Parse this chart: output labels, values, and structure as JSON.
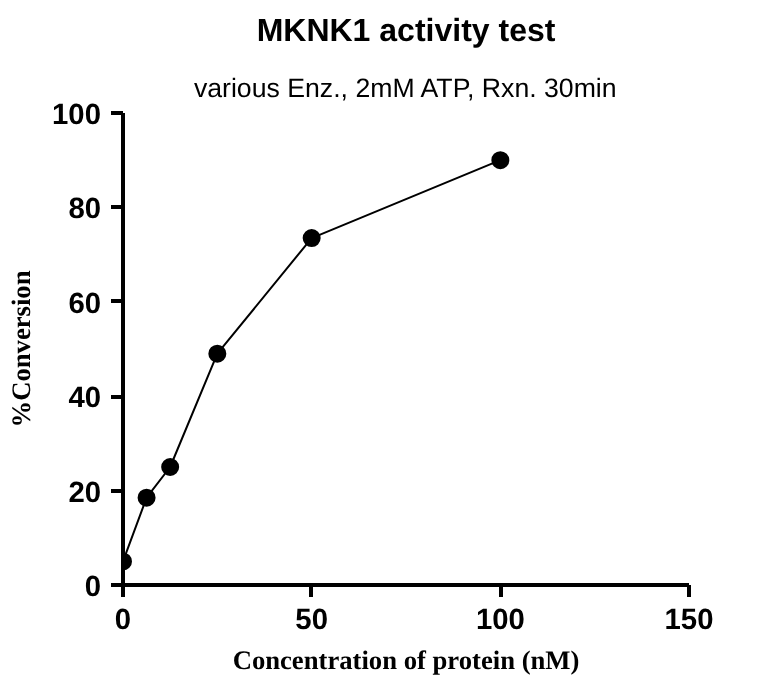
{
  "chart_data": {
    "type": "line",
    "title": "MKNK1 activity test",
    "subtitle": "various Enz., 2mM ATP, Rxn. 30min",
    "xlabel": "Concentration of protein (nM)",
    "ylabel": "%Conversion",
    "x": [
      0,
      6.25,
      12.5,
      25,
      50,
      100
    ],
    "series": [
      {
        "color": "#000000",
        "values": [
          5,
          18.5,
          25,
          49,
          73.5,
          90
        ]
      }
    ],
    "xlim": [
      0,
      150
    ],
    "xticks": [
      0,
      50,
      100,
      150
    ],
    "ylim": [
      0,
      100
    ],
    "yticks": [
      0,
      20,
      40,
      60,
      80,
      100
    ],
    "grid": false,
    "marker": "circle",
    "line_style": "solid"
  }
}
